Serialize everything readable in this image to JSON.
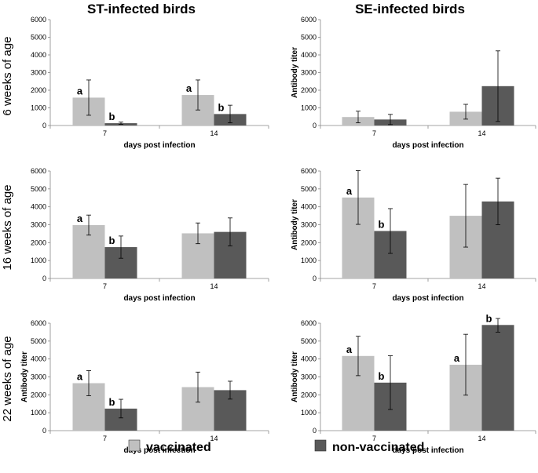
{
  "columns": [
    "ST-infected birds",
    "SE-infected birds"
  ],
  "rows": [
    "6 weeks of age",
    "16 weeks of age",
    "22 weeks of age"
  ],
  "legend": [
    {
      "label": "vaccinated",
      "color": "#c0c0c0"
    },
    {
      "label": "non-vaccinated",
      "color": "#595959"
    }
  ],
  "chart_data": [
    {
      "type": "bar",
      "title": "ST-infected birds, 6 weeks of age",
      "categories": [
        "7",
        "14"
      ],
      "xlabel": "days post infection",
      "ylabel": "",
      "ylim": [
        0,
        6000
      ],
      "yticks": [
        "0",
        "1000",
        "2000",
        "3000",
        "4000",
        "5000",
        "6000"
      ],
      "series": [
        {
          "name": "vaccinated",
          "values": [
            1580,
            1730
          ],
          "err": [
            1000,
            850
          ],
          "sig": [
            "a",
            "a"
          ]
        },
        {
          "name": "non-vaccinated",
          "values": [
            130,
            650
          ],
          "err": [
            60,
            500
          ],
          "sig": [
            "b",
            "b"
          ]
        }
      ]
    },
    {
      "type": "bar",
      "title": "SE-infected birds, 6 weeks of age",
      "categories": [
        "7",
        "14"
      ],
      "xlabel": "days post infection",
      "ylabel": "Antibody titer",
      "ylim": [
        0,
        6000
      ],
      "yticks": [
        "0",
        "1000",
        "2000",
        "3000",
        "4000",
        "5000",
        "6000"
      ],
      "series": [
        {
          "name": "vaccinated",
          "values": [
            480,
            780
          ],
          "err": [
            330,
            420
          ],
          "sig": [
            "",
            ""
          ]
        },
        {
          "name": "non-vaccinated",
          "values": [
            340,
            2230
          ],
          "err": [
            290,
            2000
          ],
          "sig": [
            "",
            ""
          ]
        }
      ]
    },
    {
      "type": "bar",
      "title": "ST-infected birds, 16 weeks of age",
      "categories": [
        "7",
        "14"
      ],
      "xlabel": "days post infection",
      "ylabel": "",
      "ylim": [
        0,
        6000
      ],
      "yticks": [
        "0",
        "1000",
        "2000",
        "3000",
        "4000",
        "5000",
        "6000"
      ],
      "series": [
        {
          "name": "vaccinated",
          "values": [
            2980,
            2520
          ],
          "err": [
            560,
            580
          ],
          "sig": [
            "a",
            ""
          ]
        },
        {
          "name": "non-vaccinated",
          "values": [
            1750,
            2600
          ],
          "err": [
            620,
            780
          ],
          "sig": [
            "b",
            ""
          ]
        }
      ]
    },
    {
      "type": "bar",
      "title": "SE-infected birds, 16 weeks of age",
      "categories": [
        "7",
        "14"
      ],
      "xlabel": "days post infection",
      "ylabel": "Antibody titer",
      "ylim": [
        0,
        6000
      ],
      "yticks": [
        "0",
        "1000",
        "2000",
        "3000",
        "4000",
        "5000",
        "6000"
      ],
      "series": [
        {
          "name": "vaccinated",
          "values": [
            4520,
            3500
          ],
          "err": [
            1500,
            1750
          ],
          "sig": [
            "a",
            ""
          ]
        },
        {
          "name": "non-vaccinated",
          "values": [
            2650,
            4300
          ],
          "err": [
            1250,
            1300
          ],
          "sig": [
            "b",
            ""
          ]
        }
      ]
    },
    {
      "type": "bar",
      "title": "ST-infected birds, 22 weeks of age",
      "categories": [
        "7",
        "14"
      ],
      "xlabel": "days post infection",
      "ylabel": "Antibody titer",
      "ylim": [
        0,
        6000
      ],
      "yticks": [
        "0",
        "1000",
        "2000",
        "3000",
        "4000",
        "5000",
        "6000"
      ],
      "series": [
        {
          "name": "vaccinated",
          "values": [
            2650,
            2430
          ],
          "err": [
            700,
            840
          ],
          "sig": [
            "a",
            ""
          ]
        },
        {
          "name": "non-vaccinated",
          "values": [
            1230,
            2260
          ],
          "err": [
            520,
            500
          ],
          "sig": [
            "b",
            ""
          ]
        }
      ]
    },
    {
      "type": "bar",
      "title": "SE-infected birds, 22 weeks of age",
      "categories": [
        "7",
        "14"
      ],
      "xlabel": "days post infection",
      "ylabel": "Antibody titer",
      "ylim": [
        0,
        6000
      ],
      "yticks": [
        "0",
        "1000",
        "2000",
        "3000",
        "4000",
        "5000",
        "6000"
      ],
      "series": [
        {
          "name": "vaccinated",
          "values": [
            4170,
            3680
          ],
          "err": [
            1100,
            1700
          ],
          "sig": [
            "a",
            "a"
          ]
        },
        {
          "name": "non-vaccinated",
          "values": [
            2680,
            5900
          ],
          "err": [
            1500,
            400
          ],
          "sig": [
            "b",
            "b"
          ]
        }
      ]
    }
  ]
}
